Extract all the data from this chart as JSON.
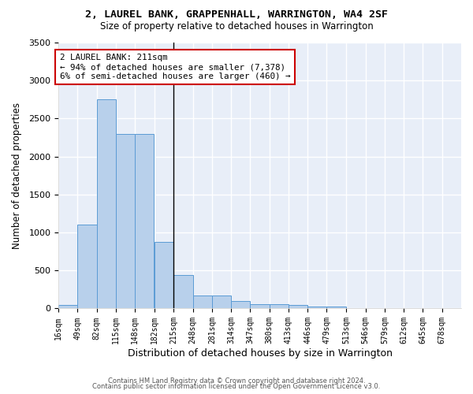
{
  "title1": "2, LAUREL BANK, GRAPPENHALL, WARRINGTON, WA4 2SF",
  "title2": "Size of property relative to detached houses in Warrington",
  "xlabel": "Distribution of detached houses by size in Warrington",
  "ylabel": "Number of detached properties",
  "bins": [
    16,
    49,
    82,
    115,
    148,
    182,
    215,
    248,
    281,
    314,
    347,
    380,
    413,
    446,
    479,
    513,
    546,
    579,
    612,
    645,
    678
  ],
  "values": [
    50,
    1100,
    2750,
    2300,
    2300,
    880,
    440,
    175,
    175,
    95,
    55,
    55,
    45,
    30,
    30,
    0,
    0,
    0,
    0,
    0,
    0
  ],
  "bar_color": "#b8d0eb",
  "bar_edge_color": "#5b9bd5",
  "property_line_x": 215,
  "property_sqm": 211,
  "annotation_text": "2 LAUREL BANK: 211sqm\n← 94% of detached houses are smaller (7,378)\n6% of semi-detached houses are larger (460) →",
  "annotation_box_color": "white",
  "annotation_box_edge": "#cc0000",
  "vline_color": "black",
  "background_color": "#ffffff",
  "plot_bg_color": "#e8eef8",
  "grid_color": "#ffffff",
  "ylim": [
    0,
    3500
  ],
  "yticks": [
    0,
    500,
    1000,
    1500,
    2000,
    2500,
    3000,
    3500
  ],
  "footer1": "Contains HM Land Registry data © Crown copyright and database right 2024.",
  "footer2": "Contains public sector information licensed under the Open Government Licence v3.0."
}
